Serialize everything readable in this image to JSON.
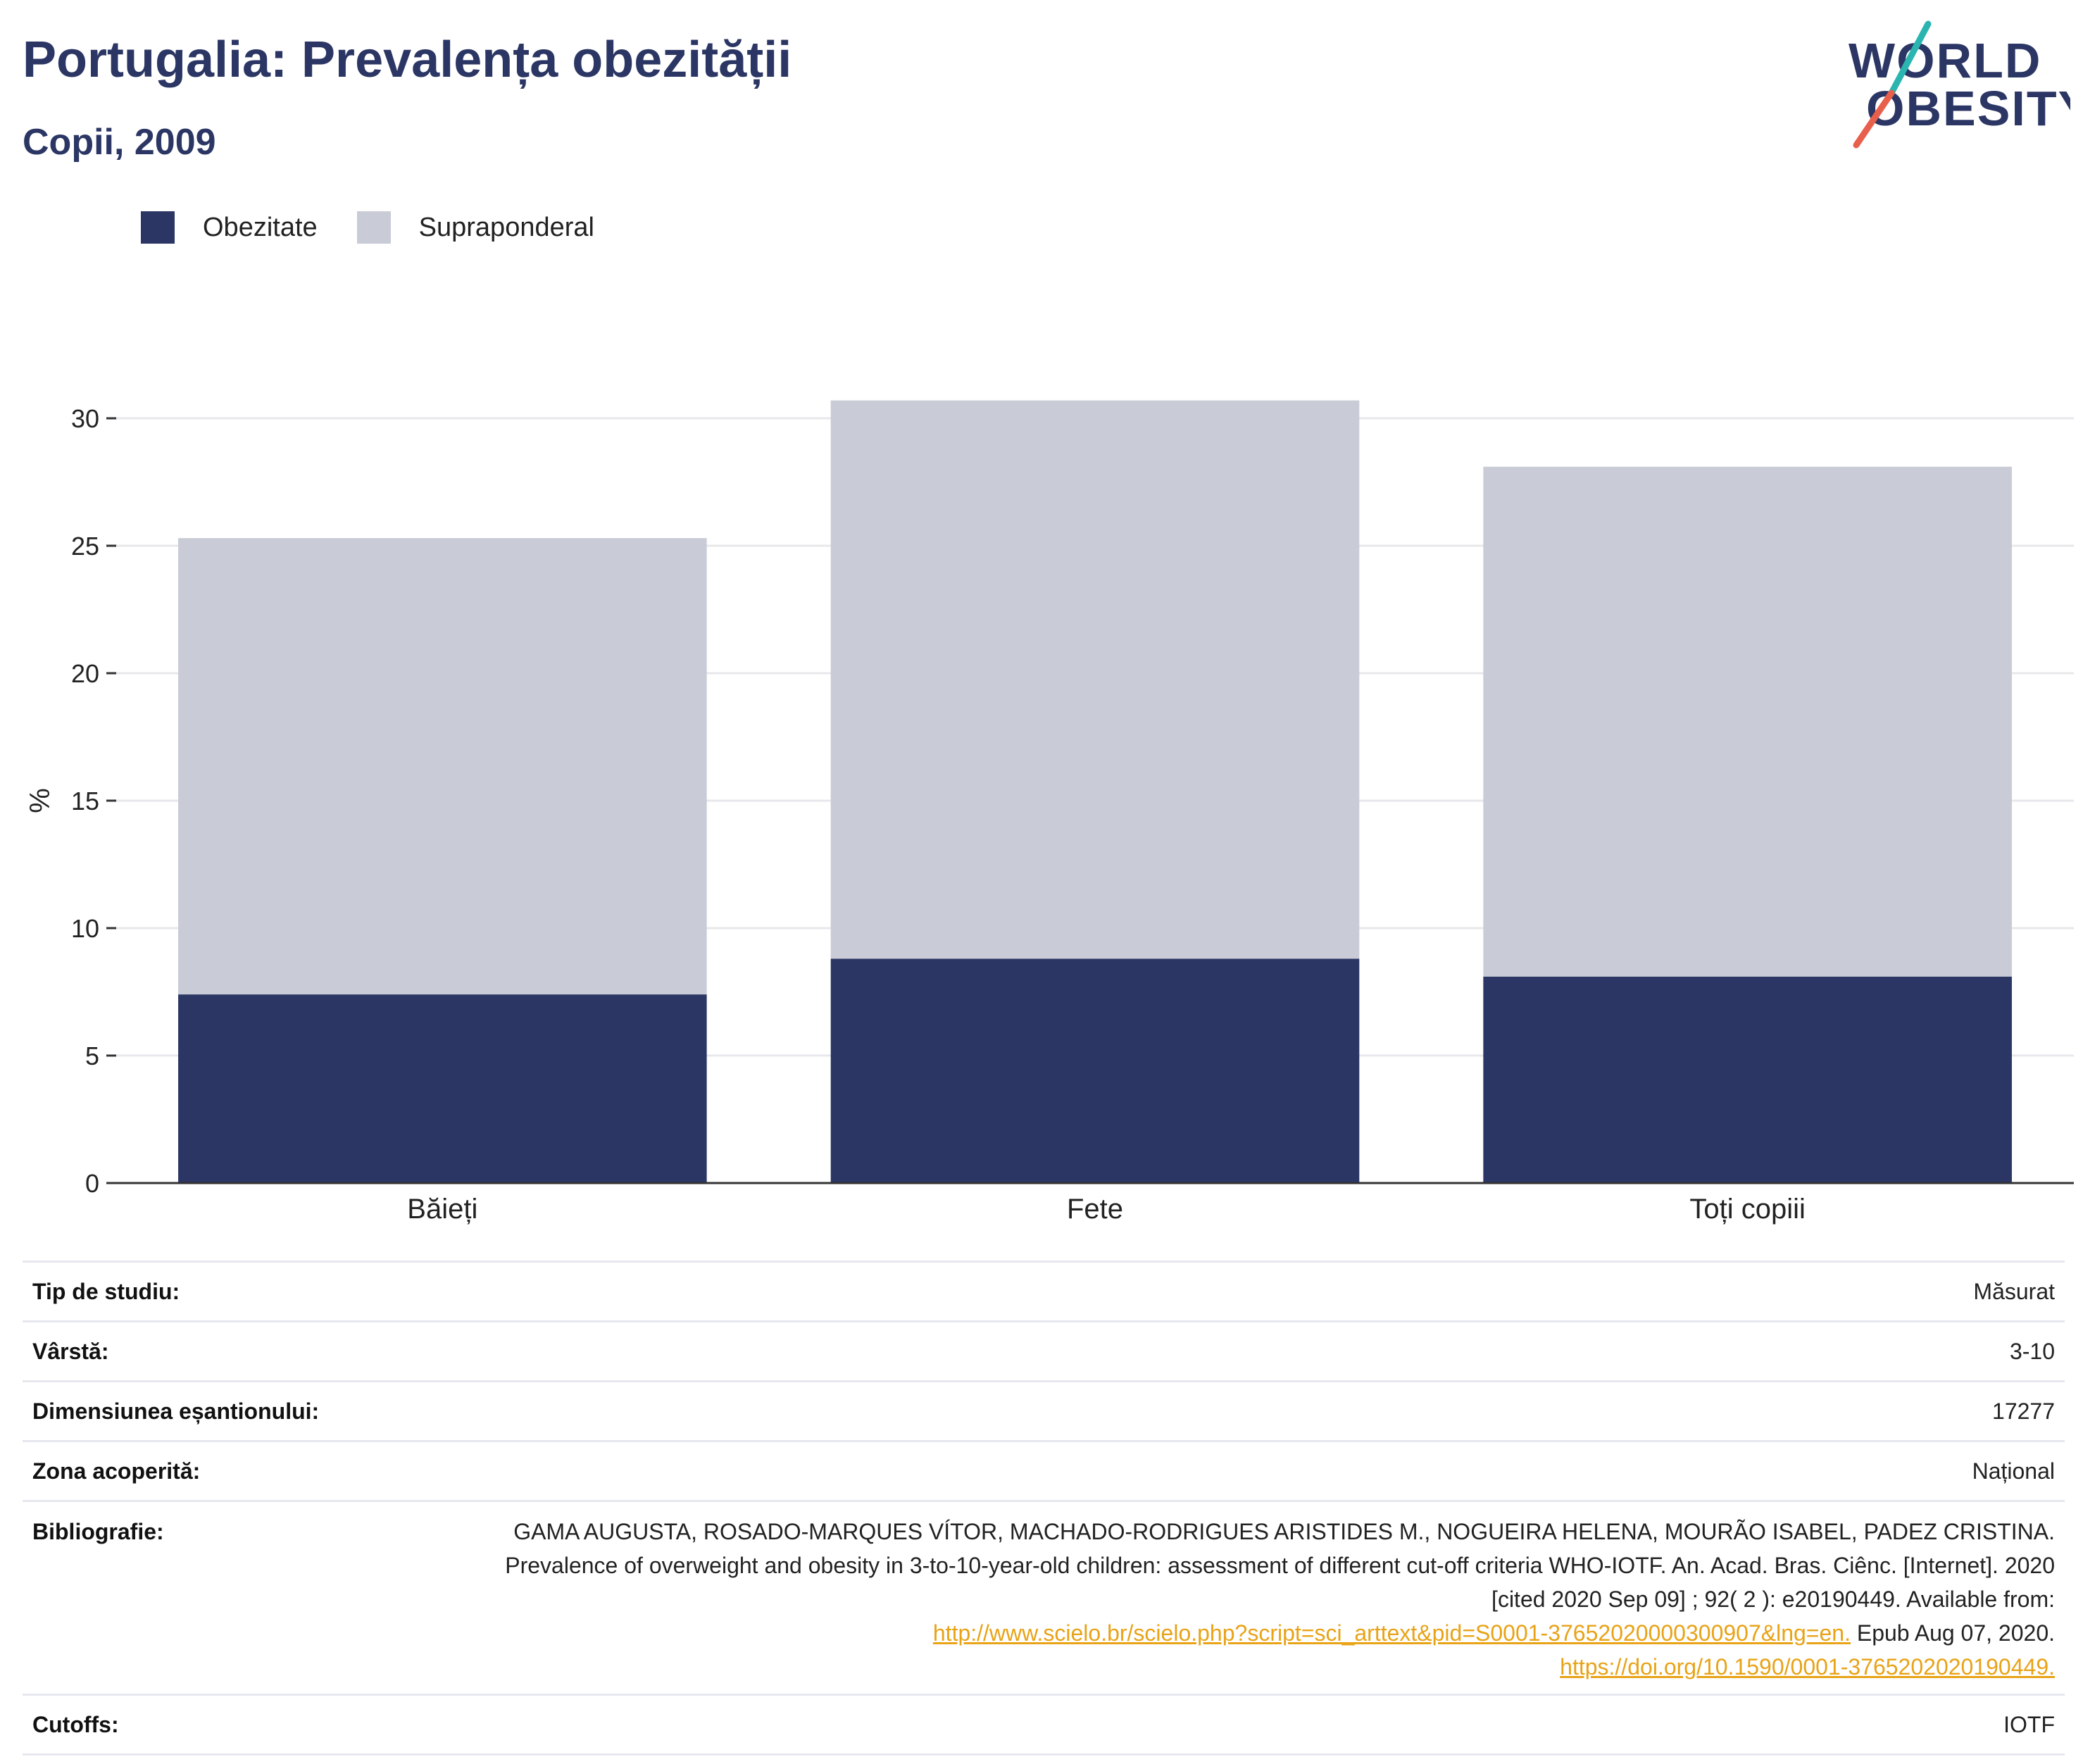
{
  "header": {
    "title": "Portugalia: Prevalența obezității",
    "subtitle": "Copii, 2009"
  },
  "logo": {
    "line1": "WORLD",
    "line2": "OBESITY",
    "accent_colors": [
      "#2bb5b0",
      "#e8604c"
    ],
    "text_color": "#2b3664"
  },
  "colors": {
    "obesity": "#2b3664",
    "overweight": "#c9cbd6",
    "grid": "#e8e8ec",
    "axis": "#333333",
    "link": "#e8a317"
  },
  "chart_data": {
    "type": "bar",
    "stacked": true,
    "categories": [
      "Băieți",
      "Fete",
      "Toți copiii"
    ],
    "series": [
      {
        "name": "Obezitate",
        "values": [
          7.4,
          8.8,
          8.1
        ]
      },
      {
        "name": "Supraponderal",
        "values": [
          17.9,
          21.9,
          20.0
        ]
      }
    ],
    "totals": [
      25.3,
      30.7,
      28.1
    ],
    "ylabel": "%",
    "xlabel": "",
    "ylim": [
      0,
      30
    ],
    "yticks": [
      0,
      5,
      10,
      15,
      20,
      25,
      30
    ],
    "grid": true,
    "legend_position": "top-left"
  },
  "info": {
    "rows": [
      {
        "label": "Tip de studiu:",
        "value": "Măsurat"
      },
      {
        "label": "Vârstă:",
        "value": "3-10"
      },
      {
        "label": "Dimensiunea eșantionului:",
        "value": "17277"
      },
      {
        "label": "Zona acoperită:",
        "value": "Național"
      }
    ],
    "bibliography": {
      "label": "Bibliografie:",
      "text": "GAMA AUGUSTA, ROSADO-MARQUES VÍTOR, MACHADO-RODRIGUES ARISTIDES M., NOGUEIRA HELENA, MOURÃO ISABEL, PADEZ CRISTINA. Prevalence of overweight and obesity in 3-to-10-year-old children: assessment of different cut-off criteria WHO-IOTF. An. Acad. Bras. Ciênc. [Internet]. 2020 [cited 2020 Sep 09] ; 92( 2 ): e20190449. Available from:",
      "link1": "http://www.scielo.br/scielo.php?script=sci_arttext&pid=S0001-37652020000300907&lng=en.",
      "mid_text": " Epub Aug 07, 2020.",
      "link2": "https://doi.org/10.1590/0001-3765202020190449."
    },
    "cutoffs": {
      "label": "Cutoffs:",
      "value": "IOTF"
    }
  }
}
